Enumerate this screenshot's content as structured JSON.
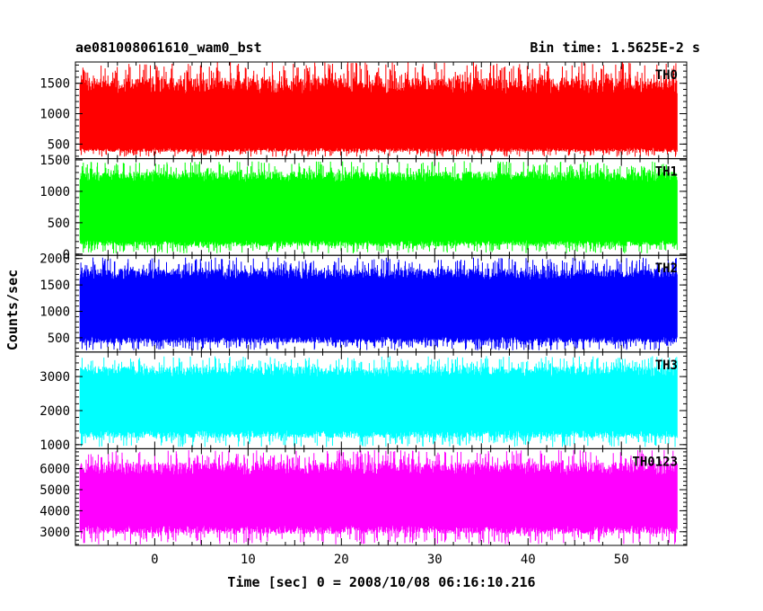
{
  "header": {
    "title": "ae081008061610_wam0_bst",
    "bin_time": "Bin time: 1.5625E-2 s"
  },
  "chart_data": {
    "type": "line",
    "title": "ae081008061610_wam0_bst",
    "bin_time": "Bin time: 1.5625E-2 s",
    "ylabel": "Counts/sec",
    "xlabel": "Time [sec] 0 = 2008/10/08 06:16:10.216",
    "xlim": [
      -8.5,
      57
    ],
    "x_ticks": [
      0,
      10,
      20,
      30,
      40,
      50
    ],
    "data_x_range": [
      -8,
      56
    ],
    "series": [
      {
        "name": "TH0",
        "color": "#ff0000",
        "ylim": [
          260,
          1850
        ],
        "yticks": [
          500,
          1000,
          1500
        ],
        "range": [
          290,
          1850
        ],
        "core": [
          440,
          1330
        ],
        "mean": 880
      },
      {
        "name": "TH1",
        "color": "#00ff00",
        "ylim": [
          -20,
          1520
        ],
        "yticks": [
          0,
          500,
          1000,
          1500
        ],
        "range": [
          10,
          1480
        ],
        "core": [
          220,
          1150
        ],
        "mean": 700
      },
      {
        "name": "TH2",
        "color": "#0000ff",
        "ylim": [
          230,
          2060
        ],
        "yticks": [
          500,
          1000,
          1500,
          2000
        ],
        "range": [
          260,
          2020
        ],
        "core": [
          520,
          1600
        ],
        "mean": 1060
      },
      {
        "name": "TH3",
        "color": "#00ffff",
        "ylim": [
          880,
          3720
        ],
        "yticks": [
          1000,
          2000,
          3000
        ],
        "range": [
          930,
          3600
        ],
        "core": [
          1420,
          3000
        ],
        "mean": 2200
      },
      {
        "name": "TH0123",
        "color": "#ff00ff",
        "ylim": [
          2350,
          6950
        ],
        "yticks": [
          3000,
          4000,
          5000,
          6000
        ],
        "range": [
          2400,
          6900
        ],
        "core": [
          3300,
          5700
        ],
        "mean": 4500
      }
    ]
  }
}
